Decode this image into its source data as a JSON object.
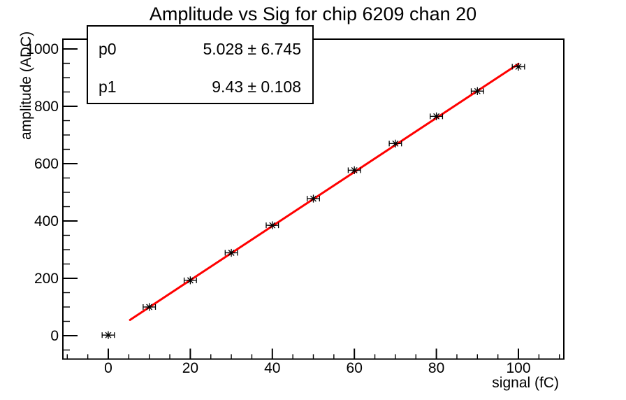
{
  "title": "Amplitude vs Sig for chip 6209 chan 20",
  "stats_box": {
    "rows": [
      {
        "label": "p0",
        "value": "5.028 ± 6.745"
      },
      {
        "label": "p1",
        "value": "9.43 ± 0.108"
      }
    ]
  },
  "chart_data": {
    "type": "scatter",
    "title": "Amplitude vs Sig for chip 6209 chan 20",
    "xlabel": "signal (fC)",
    "ylabel": "amplitude (ADC)",
    "x": [
      0,
      10,
      20,
      30,
      40,
      50,
      60,
      70,
      80,
      90,
      100
    ],
    "y": [
      2,
      100,
      193,
      289,
      385,
      478,
      577,
      670,
      765,
      853,
      938
    ],
    "x_err": 1.5,
    "marker": "asterisk",
    "marker_color": "#000000",
    "fit": {
      "type": "linear",
      "p0": 5.028,
      "p1": 9.43,
      "draw_range": [
        5.3,
        100
      ],
      "color": "#ff0000"
    },
    "xlim": [
      -11.07,
      111.07
    ],
    "ylim": [
      -81.7,
      1034.2
    ],
    "x_major_ticks": [
      0,
      20,
      40,
      60,
      80,
      100
    ],
    "x_minor_step": 5,
    "y_major_ticks": [
      0,
      200,
      400,
      600,
      800,
      1000
    ],
    "y_minor_step": 50,
    "grid": false,
    "legend_position": "none"
  },
  "colors": {
    "background": "#ffffff",
    "frame": "#000000",
    "fit_line": "#ff0000",
    "marker": "#000000"
  }
}
